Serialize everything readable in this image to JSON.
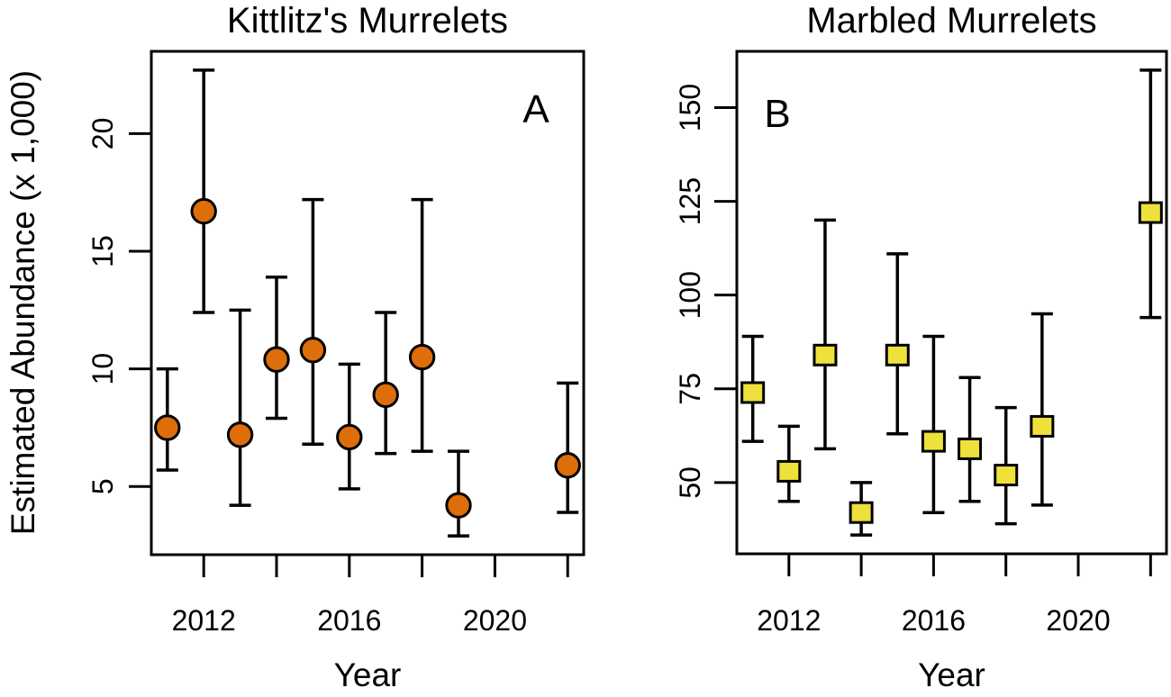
{
  "figure": {
    "ylabel": "Estimated Abundance (x 1,000)"
  },
  "chart_data": [
    {
      "type": "scatter",
      "panel_label": "A",
      "title": "Kittlitz's Murrelets",
      "xlabel": "Year",
      "ylabel": "Estimated Abundance (x 1,000)",
      "marker": "circle",
      "marker_fill": "#DD6E0A",
      "marker_edge": "#000000",
      "errorbar_color": "#000000",
      "x": [
        2011,
        2012,
        2013,
        2014,
        2015,
        2016,
        2017,
        2018,
        2019,
        2022
      ],
      "y": [
        7.5,
        16.7,
        7.2,
        10.4,
        10.8,
        7.1,
        8.9,
        10.5,
        4.2,
        5.9
      ],
      "ci_low": [
        5.7,
        12.4,
        4.2,
        7.9,
        6.8,
        4.9,
        6.4,
        6.5,
        2.9,
        3.9
      ],
      "ci_high": [
        10.0,
        22.7,
        12.5,
        13.9,
        17.2,
        10.2,
        12.4,
        17.2,
        6.5,
        9.4
      ],
      "xlim": [
        2010.56,
        2022.44
      ],
      "ylim": [
        2.1,
        23.5
      ],
      "xticks": [
        2012,
        2014,
        2016,
        2018,
        2020,
        2022
      ],
      "xtick_labels": [
        "2012",
        "",
        "2016",
        "",
        "2020",
        ""
      ],
      "yticks": [
        5,
        10,
        15,
        20
      ],
      "ytick_labels": [
        "5",
        "10",
        "15",
        "20"
      ],
      "grid": false,
      "legend": false
    },
    {
      "type": "scatter",
      "panel_label": "B",
      "title": "Marbled Murrelets",
      "xlabel": "Year",
      "ylabel": "Estimated Abundance (x 1,000)",
      "marker": "square",
      "marker_fill": "#EFE13C",
      "marker_edge": "#000000",
      "errorbar_color": "#000000",
      "x": [
        2011,
        2012,
        2013,
        2014,
        2015,
        2016,
        2017,
        2018,
        2019,
        2022
      ],
      "y": [
        74,
        53,
        84,
        42,
        84,
        61,
        59,
        52,
        65,
        122
      ],
      "ci_low": [
        61,
        45,
        59,
        36,
        63,
        42,
        45,
        39,
        44,
        94
      ],
      "ci_high": [
        89,
        65,
        120,
        50,
        111,
        89,
        78,
        70,
        95,
        160
      ],
      "xlim": [
        2010.56,
        2022.44
      ],
      "ylim": [
        31,
        165
      ],
      "xticks": [
        2012,
        2014,
        2016,
        2018,
        2020,
        2022
      ],
      "xtick_labels": [
        "2012",
        "",
        "2016",
        "",
        "2020",
        ""
      ],
      "yticks": [
        50,
        75,
        100,
        125,
        150
      ],
      "ytick_labels": [
        "50",
        "75",
        "100",
        "125",
        "150"
      ],
      "grid": false,
      "legend": false
    }
  ]
}
